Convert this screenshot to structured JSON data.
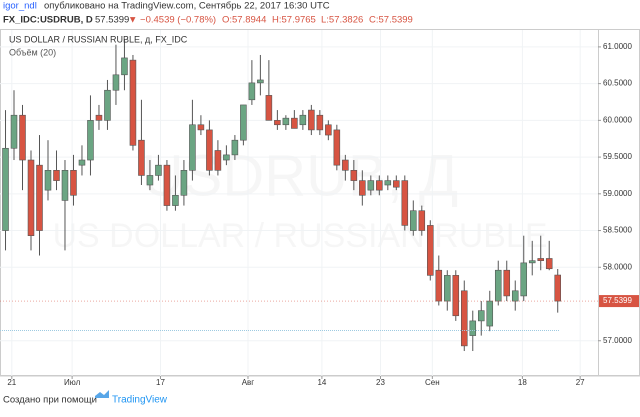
{
  "header": {
    "publisher": "igor_ndl",
    "published": "опубликовано на TradingView.com, Сентябрь 22, 2017 16:30 UTC",
    "symbol": "FX_IDC:USDRUB, D",
    "price": "57.5399",
    "change": "▼ −0.4539 (−0.78%)",
    "ohlc": [
      "O:57.8944",
      "H:57.9765",
      "L:57.3826",
      "C:57.5399"
    ]
  },
  "chart_data": {
    "type": "candlestick",
    "title": "US DOLLAR / RUSSIAN RUBLE, д, FX_IDC",
    "subtitle": "Объём (20)",
    "watermark": [
      "USDRUB, Д",
      "US DOLLAR / RUSSIAN RUBLE"
    ],
    "up_color": "#6ba583",
    "down_color": "#d75442",
    "grid": true,
    "open": [
      58.5,
      59.62,
      60.07,
      59.46,
      59.39,
      59.05,
      59.32,
      58.91,
      59.32,
      59.39,
      59.46,
      60.07,
      60.0,
      60.41,
      60.62,
      60.82,
      59.73,
      59.12,
      59.25,
      59.39,
      58.84,
      58.98,
      59.32,
      59.94,
      59.87,
      59.59,
      59.46,
      59.53,
      59.73,
      60.28,
      60.51,
      60.34,
      60.0,
      59.94,
      60.03,
      59.94,
      60.14,
      60.07,
      59.94,
      59.87,
      59.46,
      59.32,
      59.18,
      59.05,
      59.18,
      59.12,
      59.18,
      59.18,
      58.5,
      58.77,
      58.57,
      57.96,
      57.54,
      57.89,
      57.68,
      57.07,
      57.27,
      57.2,
      57.54,
      57.96,
      57.54,
      57.61,
      58.06,
      58.12,
      58.12,
      57.8944
    ],
    "high": [
      60.14,
      60.41,
      60.21,
      59.59,
      59.8,
      59.73,
      59.59,
      59.46,
      59.53,
      59.66,
      60.34,
      60.21,
      60.55,
      61.03,
      61.1,
      60.89,
      60.28,
      59.46,
      59.53,
      59.46,
      59.25,
      59.46,
      60.28,
      60.07,
      60.0,
      59.73,
      59.66,
      59.8,
      60.21,
      60.82,
      60.89,
      60.82,
      60.14,
      60.07,
      60.14,
      60.14,
      60.21,
      60.14,
      60.0,
      59.94,
      59.53,
      59.46,
      59.32,
      59.25,
      59.25,
      59.25,
      59.25,
      59.25,
      58.91,
      58.84,
      58.64,
      58.16,
      57.96,
      57.96,
      57.82,
      57.41,
      57.54,
      57.68,
      58.09,
      58.09,
      57.82,
      58.43,
      58.36,
      58.43,
      58.36,
      57.9765
    ],
    "low": [
      58.23,
      59.46,
      59.05,
      58.23,
      58.16,
      58.91,
      59.05,
      58.23,
      58.84,
      59.25,
      59.25,
      59.87,
      59.87,
      60.21,
      60.41,
      59.59,
      59.12,
      59.05,
      59.18,
      58.77,
      58.77,
      58.84,
      59.18,
      59.8,
      59.25,
      59.25,
      59.39,
      59.46,
      59.66,
      60.21,
      60.34,
      60.0,
      59.87,
      59.87,
      59.89,
      59.87,
      59.8,
      59.8,
      59.73,
      59.32,
      59.18,
      59.05,
      58.84,
      58.98,
      58.98,
      59.05,
      59.05,
      58.5,
      58.43,
      58.43,
      57.82,
      57.48,
      57.41,
      57.27,
      56.86,
      56.86,
      57.07,
      57.13,
      57.48,
      57.54,
      57.41,
      57.54,
      57.89,
      57.96,
      57.96,
      57.3826
    ],
    "close": [
      59.62,
      60.07,
      59.46,
      58.43,
      58.5,
      59.32,
      59.18,
      59.32,
      58.98,
      59.46,
      60.0,
      60.0,
      60.41,
      60.62,
      60.85,
      59.66,
      59.25,
      59.25,
      59.39,
      58.84,
      58.98,
      59.32,
      59.94,
      59.87,
      59.32,
      59.32,
      59.53,
      59.73,
      60.21,
      60.51,
      60.55,
      60.0,
      59.94,
      60.03,
      59.89,
      60.07,
      59.87,
      59.87,
      59.8,
      59.39,
      59.32,
      59.18,
      58.98,
      59.18,
      59.05,
      59.18,
      59.09,
      58.57,
      58.77,
      58.5,
      57.89,
      57.54,
      57.89,
      57.34,
      56.93,
      57.27,
      57.41,
      57.54,
      57.96,
      57.61,
      57.68,
      58.06,
      58.09,
      58.09,
      57.98,
      57.5399
    ],
    "xlim": [
      -0.59,
      69.8
    ],
    "ylim": [
      56.52,
      61.23
    ],
    "xticks": [
      {
        "value": 0.8,
        "label": "21"
      },
      {
        "value": 7.9,
        "label": "Июл"
      },
      {
        "value": 18.3,
        "label": "17"
      },
      {
        "value": 28.6,
        "label": "Авг"
      },
      {
        "value": 37.3,
        "label": "14"
      },
      {
        "value": 44.2,
        "label": "23"
      },
      {
        "value": 50.3,
        "label": "Сен"
      },
      {
        "value": 60.9,
        "label": "18"
      },
      {
        "value": 67.7,
        "label": "27"
      }
    ],
    "yticks": [
      {
        "value": 57,
        "label": "57.0000"
      },
      {
        "value": 58,
        "label": "58.0000"
      },
      {
        "value": 58.5,
        "label": "58.5000"
      },
      {
        "value": 59,
        "label": "59.0000"
      },
      {
        "value": 59.5,
        "label": "59.5000"
      },
      {
        "value": 60,
        "label": "60.0000"
      },
      {
        "value": 60.5,
        "label": "60.5000"
      },
      {
        "value": 61,
        "label": "61.0000"
      }
    ]
  },
  "footer": {
    "made_with": "Создано при помощи",
    "brand": "TradingView"
  }
}
